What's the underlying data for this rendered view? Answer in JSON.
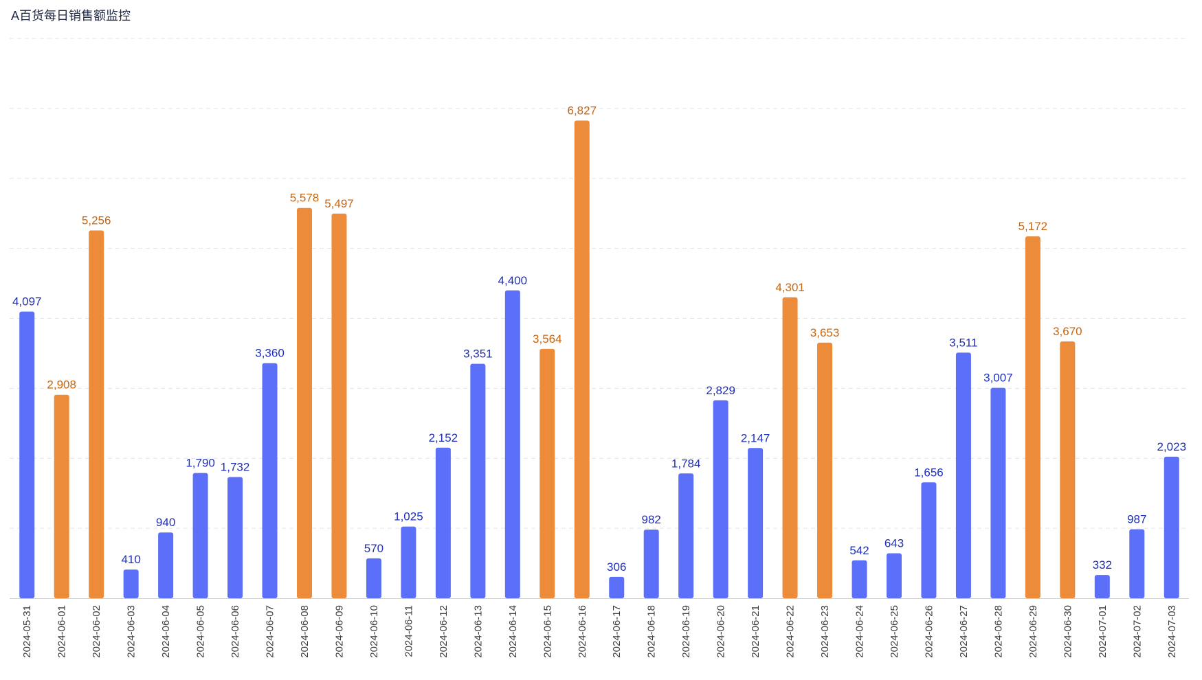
{
  "chart_data": {
    "type": "bar",
    "title": "A百货每日销售额监控",
    "xlabel": "",
    "ylabel": "",
    "ylim": [
      0,
      8000
    ],
    "grid": true,
    "colors": {
      "normal": "#5b6ff9",
      "highlight": "#ec8b3a",
      "normal_label": "#1f2fb8",
      "highlight_label": "#c8650f"
    },
    "categories": [
      "2024-05-31",
      "2024-06-01",
      "2024-06-02",
      "2024-06-03",
      "2024-06-04",
      "2024-06-05",
      "2024-06-06",
      "2024-06-07",
      "2024-06-08",
      "2024-06-09",
      "2024-06-10",
      "2024-06-11",
      "2024-06-12",
      "2024-06-13",
      "2024-06-14",
      "2024-06-15",
      "2024-06-16",
      "2024-06-17",
      "2024-06-18",
      "2024-06-19",
      "2024-06-20",
      "2024-06-21",
      "2024-06-22",
      "2024-06-23",
      "2024-06-24",
      "2024-06-25",
      "2024-06-26",
      "2024-06-27",
      "2024-06-28",
      "2024-06-29",
      "2024-06-30",
      "2024-07-01",
      "2024-07-02",
      "2024-07-03"
    ],
    "values": [
      4097,
      2908,
      5256,
      410,
      940,
      1790,
      1732,
      3360,
      5578,
      5497,
      570,
      1025,
      2152,
      3351,
      4400,
      3564,
      6827,
      306,
      982,
      1784,
      2829,
      2147,
      4301,
      3653,
      542,
      643,
      1656,
      3511,
      3007,
      5172,
      3670,
      332,
      987,
      2023
    ],
    "value_labels": [
      "4,097",
      "2,908",
      "5,256",
      "410",
      "940",
      "1,790",
      "1,732",
      "3,360",
      "5,578",
      "5,497",
      "570",
      "1,025",
      "2,152",
      "3,351",
      "4,400",
      "3,564",
      "6,827",
      "306",
      "982",
      "1,784",
      "2,829",
      "2,147",
      "4,301",
      "3,653",
      "542",
      "643",
      "1,656",
      "3,511",
      "3,007",
      "5,172",
      "3,670",
      "332",
      "987",
      "2,023"
    ],
    "highlight": [
      false,
      true,
      true,
      false,
      false,
      false,
      false,
      false,
      true,
      true,
      false,
      false,
      false,
      false,
      false,
      true,
      true,
      false,
      false,
      false,
      false,
      false,
      true,
      true,
      false,
      false,
      false,
      false,
      false,
      true,
      true,
      false,
      false,
      false
    ]
  }
}
